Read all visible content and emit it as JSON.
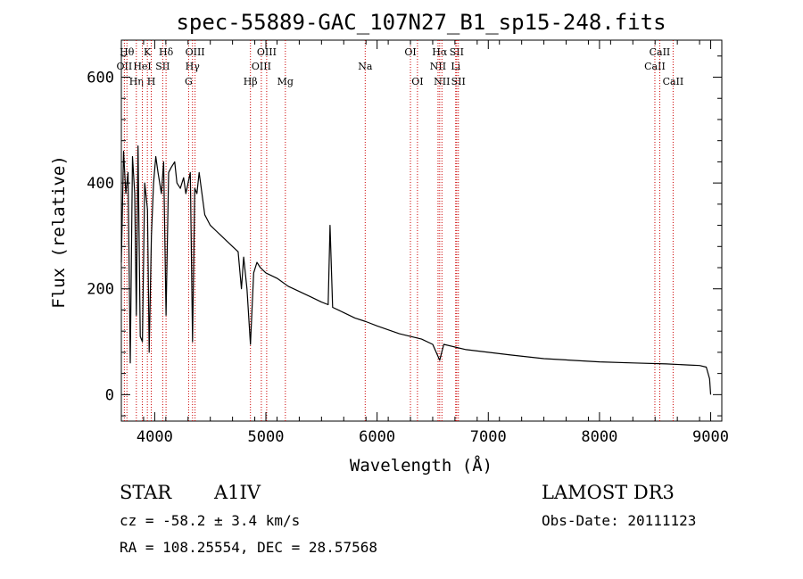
{
  "chart_data": {
    "type": "line",
    "title": "spec-55889-GAC_107N27_B1_sp15-248.fits",
    "xlabel": "Wavelength (Å)",
    "ylabel": "Flux (relative)",
    "xlim": [
      3700,
      9100
    ],
    "ylim": [
      -50,
      670
    ],
    "x_ticks": [
      4000,
      5000,
      6000,
      7000,
      8000,
      9000
    ],
    "x_tick_labels": [
      "4000",
      "5000",
      "6000",
      "7000",
      "8000",
      "9000"
    ],
    "y_ticks": [
      0,
      200,
      400,
      600
    ],
    "y_tick_labels": [
      "0",
      "200",
      "400",
      "600"
    ],
    "series": [
      {
        "name": "flux",
        "x": [
          3700,
          3720,
          3740,
          3760,
          3780,
          3800,
          3820,
          3835,
          3850,
          3870,
          3889,
          3910,
          3935,
          3950,
          3970,
          3990,
          4010,
          4030,
          4060,
          4080,
          4102,
          4125,
          4150,
          4180,
          4200,
          4230,
          4260,
          4280,
          4300,
          4320,
          4340,
          4360,
          4380,
          4400,
          4450,
          4500,
          4550,
          4600,
          4650,
          4700,
          4750,
          4780,
          4800,
          4830,
          4861,
          4890,
          4920,
          4950,
          5000,
          5100,
          5200,
          5300,
          5400,
          5500,
          5560,
          5577,
          5600,
          5700,
          5800,
          5900,
          6000,
          6200,
          6400,
          6500,
          6563,
          6600,
          6700,
          6800,
          7000,
          7200,
          7500,
          8000,
          8300,
          8600,
          8800,
          8900,
          8960,
          8990,
          9000
        ],
        "y": [
          250,
          460,
          380,
          420,
          60,
          450,
          380,
          150,
          470,
          110,
          100,
          400,
          350,
          80,
          300,
          400,
          450,
          420,
          380,
          440,
          150,
          420,
          430,
          440,
          400,
          390,
          410,
          380,
          400,
          420,
          100,
          390,
          380,
          420,
          340,
          320,
          310,
          300,
          290,
          280,
          270,
          200,
          260,
          200,
          95,
          230,
          250,
          240,
          230,
          220,
          205,
          195,
          185,
          175,
          170,
          320,
          165,
          155,
          145,
          138,
          130,
          115,
          105,
          95,
          65,
          95,
          90,
          85,
          80,
          75,
          68,
          62,
          60,
          58,
          56,
          55,
          52,
          30,
          0
        ]
      }
    ],
    "lines": [
      {
        "name": "OII",
        "x": 3727,
        "row": 2
      },
      {
        "name": "Hθ",
        "x": 3750,
        "row": 1
      },
      {
        "name": "Hη",
        "x": 3835,
        "row": 3
      },
      {
        "name": "HeI",
        "x": 3889,
        "row": 2
      },
      {
        "name": "K",
        "x": 3934,
        "row": 1
      },
      {
        "name": "H",
        "x": 3969,
        "row": 3
      },
      {
        "name": "SII",
        "x": 4072,
        "row": 2
      },
      {
        "name": "Hδ",
        "x": 4102,
        "row": 1
      },
      {
        "name": "G",
        "x": 4305,
        "row": 3
      },
      {
        "name": "Hγ",
        "x": 4340,
        "row": 2
      },
      {
        "name": "OIII",
        "x": 4363,
        "row": 1
      },
      {
        "name": "Hβ",
        "x": 4861,
        "row": 3
      },
      {
        "name": "OIII",
        "x": 4959,
        "row": 2
      },
      {
        "name": "OIII",
        "x": 5007,
        "row": 1
      },
      {
        "name": "Mg",
        "x": 5175,
        "row": 3
      },
      {
        "name": "Na",
        "x": 5893,
        "row": 2
      },
      {
        "name": "OI",
        "x": 6300,
        "row": 1
      },
      {
        "name": "OI",
        "x": 6363,
        "row": 3
      },
      {
        "name": "NII",
        "x": 6548,
        "row": 2
      },
      {
        "name": "Hα",
        "x": 6563,
        "row": 1
      },
      {
        "name": "NII",
        "x": 6583,
        "row": 3
      },
      {
        "name": "Li",
        "x": 6707,
        "row": 2
      },
      {
        "name": "SII",
        "x": 6716,
        "row": 1
      },
      {
        "name": "SII",
        "x": 6731,
        "row": 3
      },
      {
        "name": "CaII",
        "x": 8498,
        "row": 2
      },
      {
        "name": "CaII",
        "x": 8542,
        "row": 1
      },
      {
        "name": "CaII",
        "x": 8662,
        "row": 3
      }
    ]
  },
  "info": {
    "object_class": "STAR",
    "subclass": "A1IV",
    "survey": "LAMOST DR3",
    "redshift": "cz = -58.2 ± 3.4 km/s",
    "obs_date": "Obs-Date: 20111123",
    "coords": "RA = 108.25554, DEC =  28.57568"
  },
  "colors": {
    "spectrum": "#000000",
    "line_markers": "#cc0000"
  }
}
